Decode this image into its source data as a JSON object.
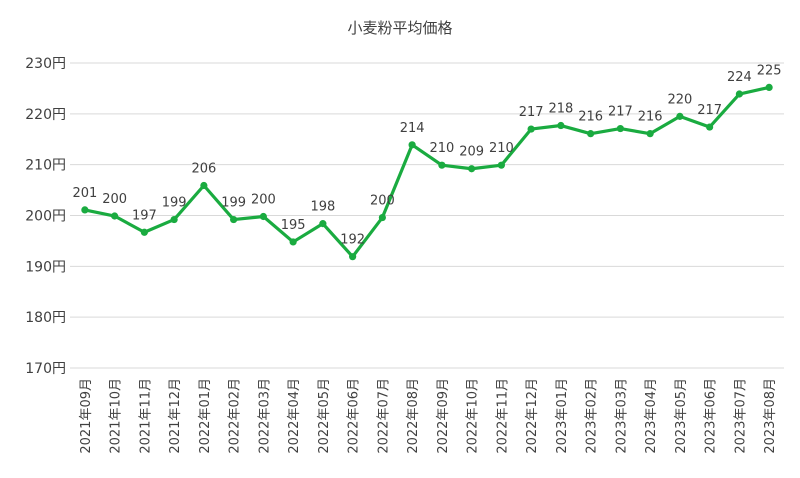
{
  "chart_data": {
    "type": "line",
    "title": "小麦粉平均価格",
    "xlabel": "",
    "ylabel": "",
    "ylim": [
      170,
      230
    ],
    "y_ticks": [
      170,
      180,
      190,
      200,
      210,
      220,
      230
    ],
    "y_tick_suffix": "円",
    "grid": true,
    "legend": "none",
    "line_color": "#1aab40",
    "categories": [
      "2021年09月",
      "2021年10月",
      "2021年11月",
      "2021年12月",
      "2022年01月",
      "2022年02月",
      "2022年03月",
      "2022年04月",
      "2022年05月",
      "2022年06月",
      "2022年07月",
      "2022年08月",
      "2022年09月",
      "2022年10月",
      "2022年11月",
      "2022年12月",
      "2023年01月",
      "2023年02月",
      "2023年03月",
      "2023年04月",
      "2023年05月",
      "2023年06月",
      "2023年07月",
      "2023年08月"
    ],
    "values": [
      201,
      200,
      197,
      199,
      206,
      199,
      200,
      195,
      198,
      192,
      200,
      214,
      210,
      209,
      210,
      217,
      218,
      216,
      217,
      216,
      220,
      217,
      224,
      225
    ],
    "plot_values": [
      201.1,
      199.9,
      196.7,
      199.2,
      205.9,
      199.2,
      199.8,
      194.8,
      198.4,
      191.9,
      199.6,
      213.9,
      209.9,
      209.2,
      209.9,
      217.0,
      217.7,
      216.1,
      217.1,
      216.1,
      219.5,
      217.4,
      223.9,
      225.2
    ],
    "labels": [
      "201",
      "200",
      "197",
      "199",
      "206",
      "199",
      "200",
      "195",
      "198",
      "192",
      "200",
      "214",
      "210",
      "209",
      "210",
      "217",
      "218",
      "216",
      "217",
      "216",
      "220",
      "217",
      "224",
      "225"
    ]
  }
}
